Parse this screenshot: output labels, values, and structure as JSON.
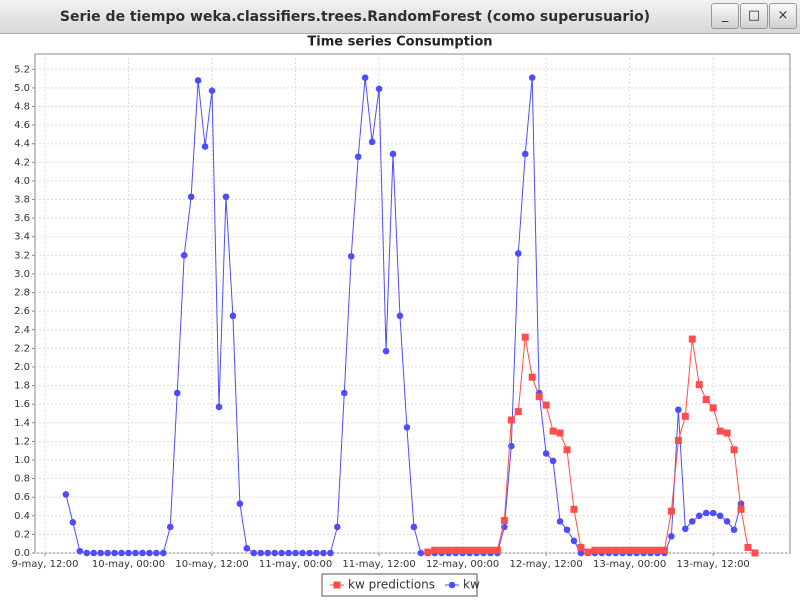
{
  "window": {
    "title": "Serie de tiempo weka.classifiers.trees.RandomForest (como superusuario)"
  },
  "chart_data": {
    "type": "line",
    "title": "Time series Consumption",
    "categories": [
      "9-may, 12:00",
      null,
      null,
      null,
      null,
      null,
      null,
      null,
      null,
      null,
      null,
      null,
      "10-may, 00:00",
      null,
      null,
      null,
      null,
      null,
      null,
      null,
      null,
      null,
      null,
      null,
      "10-may, 12:00",
      null,
      null,
      null,
      null,
      null,
      null,
      null,
      null,
      null,
      null,
      null,
      "11-may, 00:00",
      null,
      null,
      null,
      null,
      null,
      null,
      null,
      null,
      null,
      null,
      null,
      "11-may, 12:00",
      null,
      null,
      null,
      null,
      null,
      null,
      null,
      null,
      null,
      null,
      null,
      "12-may, 00:00",
      null,
      null,
      null,
      null,
      null,
      null,
      null,
      null,
      null,
      null,
      null,
      "12-may, 12:00",
      null,
      null,
      null,
      null,
      null,
      null,
      null,
      null,
      null,
      null,
      null,
      "13-may, 00:00",
      null,
      null,
      null,
      null,
      null,
      null,
      null,
      null,
      null,
      null,
      null,
      "13-may, 12:00",
      null,
      null,
      null,
      null,
      null,
      null
    ],
    "series": [
      {
        "name": "kw predictions",
        "color": "#ff4d4d",
        "marker": "square",
        "values": [
          null,
          null,
          null,
          null,
          null,
          null,
          null,
          null,
          null,
          null,
          null,
          null,
          null,
          null,
          null,
          null,
          null,
          null,
          null,
          null,
          null,
          null,
          null,
          null,
          null,
          null,
          null,
          null,
          null,
          null,
          null,
          null,
          null,
          null,
          null,
          null,
          null,
          null,
          null,
          null,
          null,
          null,
          null,
          null,
          null,
          null,
          null,
          null,
          null,
          null,
          null,
          null,
          null,
          null,
          null,
          0.01,
          0.03,
          0.03,
          0.03,
          0.03,
          0.03,
          0.03,
          0.03,
          0.03,
          0.03,
          0.03,
          0.35,
          1.43,
          1.52,
          2.32,
          1.89,
          1.68,
          1.59,
          1.31,
          1.29,
          1.11,
          0.47,
          0.06,
          0.01,
          0.03,
          0.03,
          0.03,
          0.03,
          0.03,
          0.03,
          0.03,
          0.03,
          0.03,
          0.03,
          0.03,
          0.45,
          1.21,
          1.47,
          2.3,
          1.81,
          1.65,
          1.56,
          1.31,
          1.29,
          1.11,
          0.47,
          0.06,
          0
        ]
      },
      {
        "name": "kw",
        "color": "#4d4dff",
        "marker": "circle",
        "values": [
          null,
          null,
          null,
          0.63,
          0.33,
          0.02,
          0,
          0,
          0,
          0,
          0,
          0,
          0,
          0,
          0,
          0,
          0,
          0,
          0.28,
          1.72,
          3.2,
          3.83,
          5.08,
          4.37,
          4.97,
          1.57,
          3.83,
          2.55,
          0.53,
          0.05,
          0,
          0,
          0,
          0,
          0,
          0,
          0,
          0,
          0,
          0,
          0,
          0,
          0.28,
          1.72,
          3.19,
          4.26,
          5.11,
          4.42,
          4.99,
          2.17,
          4.29,
          2.55,
          1.35,
          0.28,
          0,
          0,
          0,
          0,
          0,
          0,
          0,
          0,
          0,
          0,
          0,
          0,
          0.28,
          1.15,
          3.22,
          4.29,
          5.11,
          1.72,
          1.07,
          0.99,
          0.34,
          0.25,
          0.13,
          0,
          0,
          0,
          0,
          0,
          0,
          0,
          0,
          0,
          0,
          0,
          0,
          0,
          0.18,
          1.54,
          0.26,
          0.34,
          0.4,
          0.43,
          0.43,
          0.4,
          0.34,
          0.25,
          0.53,
          null,
          null
        ]
      }
    ],
    "ylim": [
      0,
      5.3
    ],
    "yticks": [
      {
        "value": 0,
        "label": "0.0"
      },
      0.2,
      0.4,
      0.6,
      0.8,
      {
        "value": 1,
        "label": "1.0"
      },
      1.2,
      1.4,
      1.6,
      1.8,
      {
        "value": 2,
        "label": "2.0"
      },
      2.2,
      2.4,
      2.6,
      2.8,
      {
        "value": 3,
        "label": "3.0"
      },
      3.2,
      3.4,
      3.6,
      3.8,
      {
        "value": 4,
        "label": "4.0"
      },
      4.2,
      4.4,
      4.6,
      4.8,
      {
        "value": 5,
        "label": "5.0"
      },
      5.2
    ],
    "grid": true,
    "legend": "bottom"
  }
}
